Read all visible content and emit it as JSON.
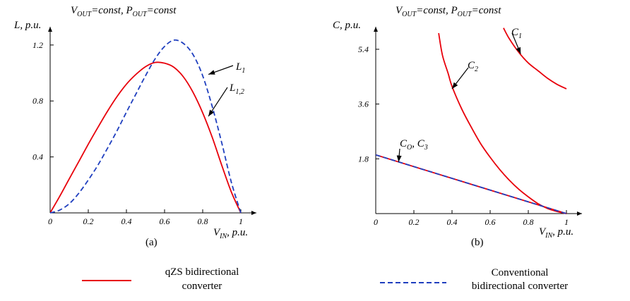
{
  "figure": {
    "legend": [
      {
        "lines": [
          "qZS bidirectional",
          "converter"
        ],
        "color": "#e8000b",
        "style": "solid"
      },
      {
        "lines": [
          "Conventional",
          "bidirectional converter"
        ],
        "color": "#1f3fbf",
        "style": "dashed"
      }
    ]
  },
  "chart_data": [
    {
      "type": "line",
      "title": {
        "v": "V",
        "vsub": "OUT",
        "rest1": "=const, P",
        "psub": "OUT",
        "rest2": "=const"
      },
      "xlabel": {
        "base": "V",
        "sub": "IN",
        "rest": ", p.u."
      },
      "ylabel": "L, p.u.",
      "caption": "(a)",
      "xlim": [
        0,
        1
      ],
      "ylim": [
        0,
        1.3
      ],
      "xticks": [
        "0",
        "0.2",
        "0.4",
        "0.6",
        "0.8",
        "1"
      ],
      "yticks": [
        "0.4",
        "0.8",
        "1.2"
      ],
      "grid": false,
      "series": [
        {
          "name": "L1,2",
          "color": "#e8000b",
          "style": "solid",
          "x": [
            0,
            0.05,
            0.1,
            0.15,
            0.2,
            0.25,
            0.3,
            0.35,
            0.4,
            0.45,
            0.5,
            0.55,
            0.6,
            0.65,
            0.7,
            0.75,
            0.8,
            0.85,
            0.9,
            0.95,
            1.0
          ],
          "y": [
            0,
            0.118,
            0.243,
            0.366,
            0.491,
            0.61,
            0.725,
            0.83,
            0.92,
            0.99,
            1.045,
            1.075,
            1.07,
            1.04,
            0.97,
            0.86,
            0.715,
            0.54,
            0.34,
            0.15,
            0
          ]
        },
        {
          "name": "L1",
          "color": "#1f3fbf",
          "style": "dashed",
          "x": [
            0,
            0.05,
            0.1,
            0.15,
            0.2,
            0.25,
            0.3,
            0.35,
            0.4,
            0.45,
            0.5,
            0.55,
            0.6,
            0.65,
            0.7,
            0.75,
            0.8,
            0.85,
            0.9,
            0.95,
            1.0
          ],
          "y": [
            0,
            0.02,
            0.065,
            0.14,
            0.235,
            0.34,
            0.46,
            0.585,
            0.72,
            0.85,
            0.98,
            1.1,
            1.19,
            1.235,
            1.21,
            1.13,
            0.98,
            0.76,
            0.5,
            0.22,
            0
          ]
        }
      ],
      "annotations": [
        {
          "base": "L",
          "sub": "1",
          "target_x": 0.83,
          "target_y": 0.99
        },
        {
          "base": "L",
          "sub": "1,2",
          "target_x": 0.83,
          "target_y": 0.69
        }
      ]
    },
    {
      "type": "line",
      "title": {
        "v": "V",
        "vsub": "OUT",
        "rest1": "=const, P",
        "psub": "OUT",
        "rest2": "=const"
      },
      "xlabel": {
        "base": "V",
        "sub": "IN",
        "rest": ", p.u."
      },
      "ylabel": "C, p.u.",
      "caption": "(b)",
      "xlim": [
        0,
        1
      ],
      "ylim": [
        0,
        6.0
      ],
      "xticks": [
        "0",
        "0.2",
        "0.4",
        "0.6",
        "0.8",
        "1"
      ],
      "yticks": [
        "1.8",
        "3.6",
        "5.4"
      ],
      "grid": false,
      "series": [
        {
          "name": "C1",
          "color": "#e8000b",
          "style": "solid",
          "x": [
            0.67,
            0.7,
            0.75,
            0.8,
            0.85,
            0.9,
            0.95,
            1.0
          ],
          "y": [
            6.1,
            5.75,
            5.3,
            4.95,
            4.7,
            4.45,
            4.25,
            4.1
          ]
        },
        {
          "name": "C2",
          "color": "#e8000b",
          "style": "solid",
          "x": [
            0.33,
            0.35,
            0.38,
            0.4,
            0.45,
            0.5,
            0.55,
            0.6,
            0.65,
            0.7,
            0.75,
            0.8,
            0.85,
            0.9,
            0.95,
            1.0
          ],
          "y": [
            5.93,
            5.2,
            4.6,
            4.18,
            3.45,
            2.85,
            2.3,
            1.85,
            1.45,
            1.1,
            0.8,
            0.55,
            0.33,
            0.17,
            0.07,
            0
          ]
        },
        {
          "name": "CO",
          "color": "#e8000b",
          "style": "solid",
          "x": [
            0,
            1
          ],
          "y": [
            1.93,
            0
          ]
        },
        {
          "name": "C3",
          "color": "#1f3fbf",
          "style": "dashed",
          "x": [
            0,
            1
          ],
          "y": [
            1.93,
            0
          ]
        }
      ],
      "annotations": [
        {
          "base": "C",
          "sub": "1",
          "target_x": 0.76,
          "target_y": 5.25
        },
        {
          "base": "C",
          "sub": "2",
          "target_x": 0.4,
          "target_y": 4.1
        },
        {
          "base": "C",
          "sub": "O",
          "extra_base": "C",
          "extra_sub": "3",
          "target_x": 0.12,
          "target_y": 1.7
        }
      ]
    }
  ]
}
